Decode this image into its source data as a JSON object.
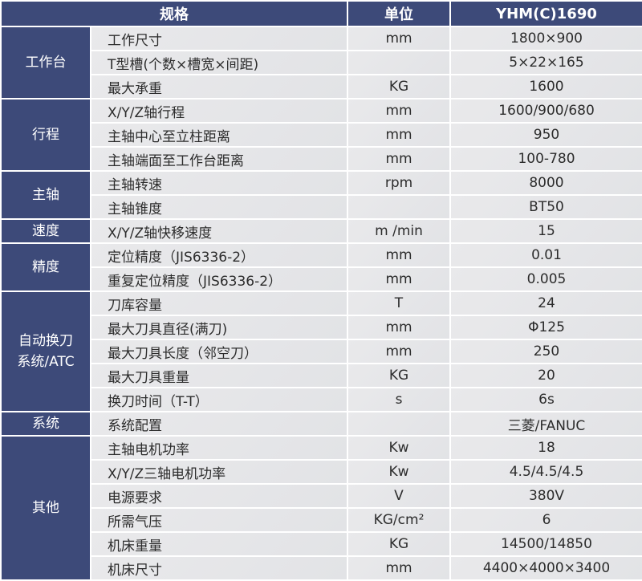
{
  "header": {
    "spec": "规格",
    "unit": "单位",
    "model": "YHM(C)1690"
  },
  "groups": [
    {
      "name": "工作台",
      "rows": [
        [
          "工作尺寸",
          "mm",
          "1800×900"
        ],
        [
          "T型槽(个数×槽宽×间距)",
          "",
          "5×22×165"
        ],
        [
          "最大承重",
          "KG",
          "1600"
        ]
      ]
    },
    {
      "name": "行程",
      "rows": [
        [
          "X/Y/Z轴行程",
          "mm",
          "1600/900/680"
        ],
        [
          "主轴中心至立柱距离",
          "mm",
          "950"
        ],
        [
          "主轴端面至工作台距离",
          "mm",
          "100-780"
        ]
      ]
    },
    {
      "name": "主轴",
      "rows": [
        [
          "主轴转速",
          "rpm",
          "8000"
        ],
        [
          "主轴锥度",
          "",
          "BT50"
        ]
      ]
    },
    {
      "name": "速度",
      "rows": [
        [
          "X/Y/Z轴快移速度",
          "m /min",
          "15"
        ]
      ]
    },
    {
      "name": "精度",
      "rows": [
        [
          "定位精度（JIS6336-2）",
          "mm",
          "0.01"
        ],
        [
          "重复定位精度（JIS6336-2）",
          "mm",
          "0.005"
        ]
      ]
    },
    {
      "name": "自动换刀\n系统/ATC",
      "rows": [
        [
          "刀库容量",
          "T",
          "24"
        ],
        [
          "最大刀具直径(满刀)",
          "mm",
          "Φ125"
        ],
        [
          "最大刀具长度（邻空刀）",
          "mm",
          "250"
        ],
        [
          "最大刀具重量",
          "KG",
          "20"
        ],
        [
          "换刀时间（T-T）",
          "s",
          "6s"
        ]
      ]
    },
    {
      "name": "系统",
      "rows": [
        [
          "系统配置",
          "",
          "三菱/FANUC"
        ]
      ]
    },
    {
      "name": "其他",
      "rows": [
        [
          "主轴电机功率",
          "Kw",
          "18"
        ],
        [
          "X/Y/Z三轴电机功率",
          "Kw",
          "4.5/4.5/4.5"
        ],
        [
          "电源要求",
          "V",
          "380V"
        ],
        [
          "所需气压",
          "KG/cm²",
          "6"
        ],
        [
          "机床重量",
          "KG",
          "14500/14850"
        ],
        [
          "机床尺寸",
          "mm",
          "4400×4000×3400"
        ]
      ]
    }
  ]
}
